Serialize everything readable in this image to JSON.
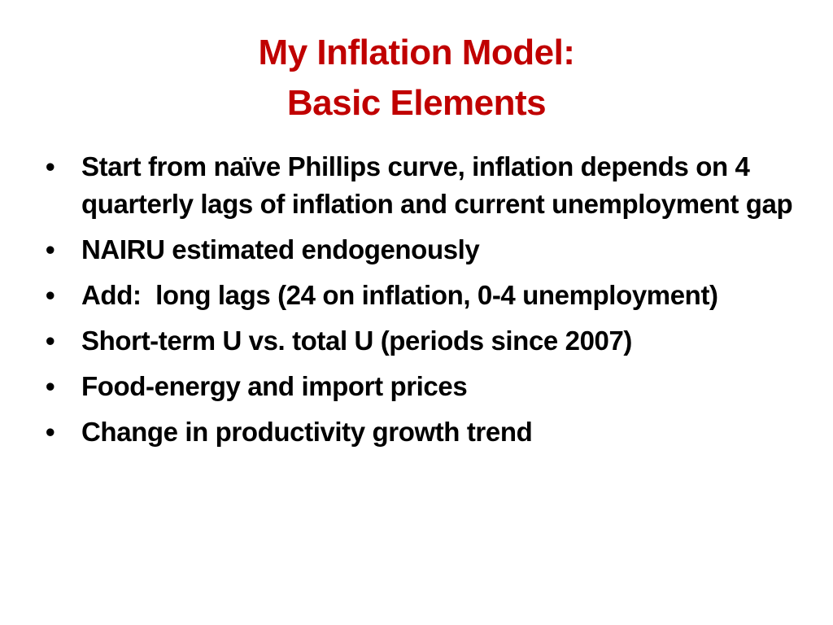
{
  "slide": {
    "title_line1": "My Inflation Model:",
    "title_line2": "Basic Elements",
    "bullet_symbol": "•",
    "bullets": [
      "Start from naïve Phillips curve, inflation depends on 4 quarterly lags of inflation and current unemployment gap",
      "NAIRU estimated endogenously",
      "Add:  long lags (24 on inflation, 0-4 unemployment)",
      "Short-term U vs. total U (periods since 2007)",
      "Food-energy and import prices",
      "Change in productivity growth trend"
    ],
    "colors": {
      "title": "#c00000",
      "text": "#000000",
      "background": "#ffffff"
    }
  }
}
